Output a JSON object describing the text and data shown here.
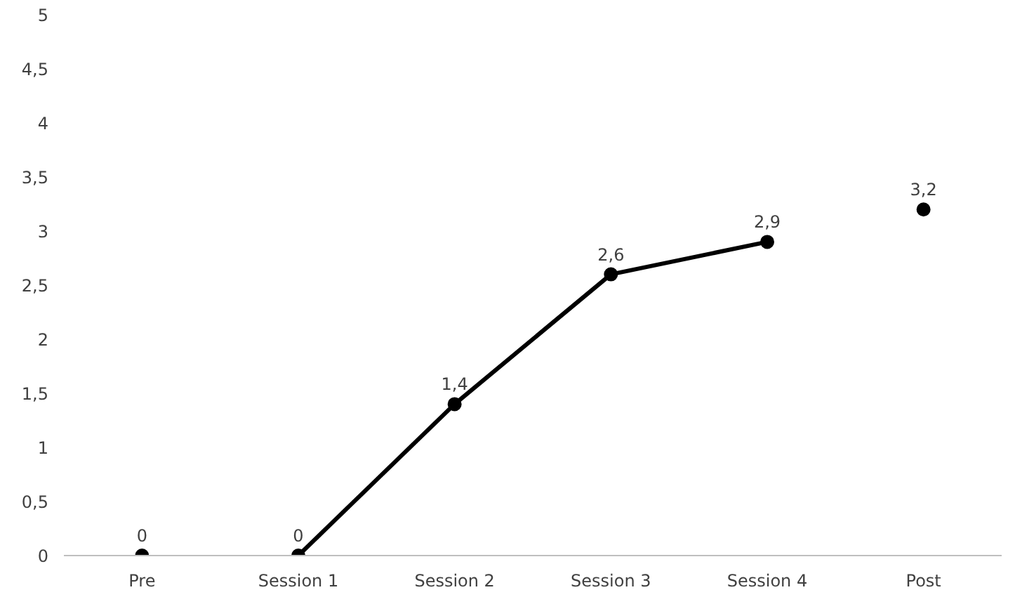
{
  "chart_data": {
    "type": "line",
    "categories": [
      "Pre",
      "Session 1",
      "Session 2",
      "Session 3",
      "Session 4",
      "Post"
    ],
    "ylim": [
      0,
      5
    ],
    "yticks": [
      0,
      {
        "value": 0.5,
        "label": "0,5"
      },
      1,
      {
        "value": 1.5,
        "label": "1,5"
      },
      2,
      {
        "value": 2.5,
        "label": "2,5"
      },
      3,
      {
        "value": 3.5,
        "label": "3,5"
      },
      4,
      {
        "value": 4.5,
        "label": "4,5"
      },
      5
    ],
    "grid": false,
    "marker": "circle",
    "line_style": "solid",
    "series": [
      {
        "color": "#000000",
        "values": [
          null,
          0,
          1.4,
          2.6,
          2.9,
          null
        ],
        "value_labels": [
          null,
          "0",
          "1,4",
          "2,6",
          "2,9",
          null
        ]
      },
      {
        "type": "scatter",
        "color": "#000000",
        "x": [
          "Pre",
          "Post"
        ],
        "values": [
          0,
          3.2
        ],
        "value_labels": [
          "0",
          "3,2"
        ]
      }
    ]
  }
}
